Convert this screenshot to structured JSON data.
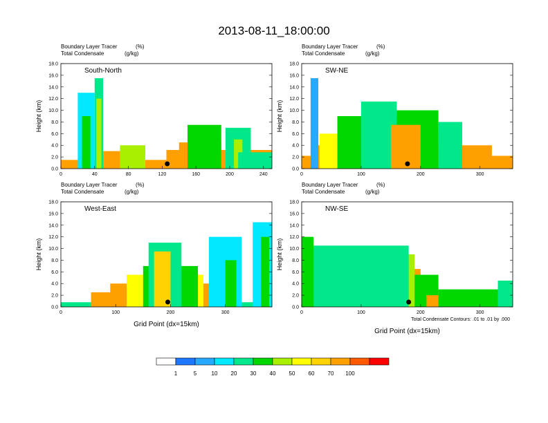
{
  "figure_title": "2013-08-11_18:00:00",
  "footnote": "Total Condensate Contours: .01 to .01 by .000",
  "colorbar": {
    "colors": [
      "#ffffff",
      "#1e78ff",
      "#28a8ff",
      "#00e8ff",
      "#00e88a",
      "#00d800",
      "#a8f000",
      "#ffff00",
      "#ffd200",
      "#ffa000",
      "#ff5a00",
      "#ff0000"
    ],
    "labels": [
      "1",
      "5",
      "10",
      "20",
      "30",
      "40",
      "50",
      "60",
      "70",
      "100"
    ]
  },
  "chart_data": [
    {
      "type": "heatmap",
      "panel": "South-North",
      "title_line1": "Boundary Layer Tracer",
      "title_unit1": "(%)",
      "title_line2": "Total Condensate",
      "title_unit2": "(g/kg)",
      "ylabel": "Height (km)",
      "xlabel": "",
      "xlim": [
        0,
        250
      ],
      "ylim": [
        0,
        18
      ],
      "xticks": [
        0,
        40,
        80,
        120,
        160,
        200,
        240
      ],
      "yticks": [
        "0.0",
        "2.0",
        "4.0",
        "6.0",
        "8.0",
        "10.0",
        "12.0",
        "14.0",
        "16.0",
        "18.0"
      ],
      "marker_x": 126,
      "plumes": [
        {
          "x0": 0,
          "x1": 250,
          "top": 1.5,
          "v": 90
        },
        {
          "x0": 125,
          "x1": 250,
          "top": 3.2,
          "v": 80
        },
        {
          "x0": 140,
          "x1": 190,
          "top": 4.5,
          "v": 70
        },
        {
          "x0": 150,
          "x1": 190,
          "top": 7.5,
          "v": 35
        },
        {
          "x0": 195,
          "x1": 225,
          "top": 7,
          "v": 25
        },
        {
          "x0": 205,
          "x1": 215,
          "top": 5,
          "v": 40
        },
        {
          "x0": 20,
          "x1": 40,
          "top": 13,
          "v": 15
        },
        {
          "x0": 25,
          "x1": 35,
          "top": 9,
          "v": 30
        },
        {
          "x0": 40,
          "x1": 50,
          "top": 15.5,
          "v": 20
        },
        {
          "x0": 42,
          "x1": 48,
          "top": 12,
          "v": 40
        },
        {
          "x0": 50,
          "x1": 100,
          "top": 3,
          "v": 70
        },
        {
          "x0": 70,
          "x1": 100,
          "top": 4,
          "v": 40
        },
        {
          "x0": 210,
          "x1": 250,
          "top": 2.8,
          "v": 20
        }
      ]
    },
    {
      "type": "heatmap",
      "panel": "SW-NE",
      "title_line1": "Boundary Layer Tracer",
      "title_unit1": "(%)",
      "title_line2": "Total Condensate",
      "title_unit2": "(g/kg)",
      "ylabel": "Height (km)",
      "xlabel": "",
      "xlim": [
        0,
        355
      ],
      "ylim": [
        0,
        18
      ],
      "xticks": [
        0,
        100,
        200,
        300
      ],
      "yticks": [
        "0.0",
        "2.0",
        "4.0",
        "6.0",
        "8.0",
        "10.0",
        "12.0",
        "14.0",
        "16.0",
        "18.0"
      ],
      "marker_x": 178,
      "plumes": [
        {
          "x0": 0,
          "x1": 355,
          "top": 2.2,
          "v": 90
        },
        {
          "x0": 20,
          "x1": 320,
          "top": 4,
          "v": 80
        },
        {
          "x0": 30,
          "x1": 230,
          "top": 6,
          "v": 50
        },
        {
          "x0": 60,
          "x1": 180,
          "top": 9,
          "v": 35
        },
        {
          "x0": 100,
          "x1": 160,
          "top": 11.5,
          "v": 20
        },
        {
          "x0": 160,
          "x1": 230,
          "top": 10,
          "v": 30
        },
        {
          "x0": 150,
          "x1": 200,
          "top": 7.5,
          "v": 70
        },
        {
          "x0": 230,
          "x1": 270,
          "top": 8,
          "v": 20
        },
        {
          "x0": 15,
          "x1": 28,
          "top": 15.5,
          "v": 5
        }
      ]
    },
    {
      "type": "heatmap",
      "panel": "West-East",
      "title_line1": "Boundary Layer Tracer",
      "title_unit1": "(%)",
      "title_line2": "Total Condensate",
      "title_unit2": "(g/kg)",
      "ylabel": "Height (km)",
      "xlabel": "Grid Point (dx=15km)",
      "xlim": [
        0,
        385
      ],
      "ylim": [
        0,
        18
      ],
      "xticks": [
        0,
        100,
        200,
        300
      ],
      "yticks": [
        "0.0",
        "2.0",
        "4.0",
        "6.0",
        "8.0",
        "10.0",
        "12.0",
        "14.0",
        "16.0",
        "18.0"
      ],
      "marker_x": 195,
      "plumes": [
        {
          "x0": 0,
          "x1": 385,
          "top": 0.8,
          "v": 25
        },
        {
          "x0": 55,
          "x1": 300,
          "top": 2.5,
          "v": 90
        },
        {
          "x0": 90,
          "x1": 280,
          "top": 4,
          "v": 80
        },
        {
          "x0": 120,
          "x1": 260,
          "top": 5.5,
          "v": 50
        },
        {
          "x0": 150,
          "x1": 250,
          "top": 7,
          "v": 35
        },
        {
          "x0": 160,
          "x1": 220,
          "top": 11,
          "v": 25
        },
        {
          "x0": 170,
          "x1": 200,
          "top": 9.5,
          "v": 65
        },
        {
          "x0": 270,
          "x1": 330,
          "top": 12,
          "v": 15
        },
        {
          "x0": 300,
          "x1": 320,
          "top": 8,
          "v": 30
        },
        {
          "x0": 350,
          "x1": 385,
          "top": 14.5,
          "v": 15
        },
        {
          "x0": 365,
          "x1": 380,
          "top": 12,
          "v": 30
        }
      ]
    },
    {
      "type": "heatmap",
      "panel": "NW-SE",
      "title_line1": "Boundary Layer Tracer",
      "title_unit1": "(%)",
      "title_line2": "Total Condensate",
      "title_unit2": "(g/kg)",
      "ylabel": "Height (km)",
      "xlabel": "Grid Point (dx=15km)",
      "xlim": [
        0,
        355
      ],
      "ylim": [
        0,
        18
      ],
      "xticks": [
        0,
        100,
        200,
        300
      ],
      "yticks": [
        "0.0",
        "2.0",
        "4.0",
        "6.0",
        "8.0",
        "10.0",
        "12.0",
        "14.0",
        "16.0",
        "18.0"
      ],
      "marker_x": 180,
      "plumes": [
        {
          "x0": 0,
          "x1": 210,
          "top": 4,
          "v": 90
        },
        {
          "x0": 0,
          "x1": 200,
          "top": 6.5,
          "v": 75
        },
        {
          "x0": 0,
          "x1": 190,
          "top": 9,
          "v": 45
        },
        {
          "x0": 0,
          "x1": 180,
          "top": 10.5,
          "v": 25
        },
        {
          "x0": 0,
          "x1": 20,
          "top": 12,
          "v": 30
        },
        {
          "x0": 190,
          "x1": 230,
          "top": 5.5,
          "v": 30
        },
        {
          "x0": 210,
          "x1": 355,
          "top": 2,
          "v": 70
        },
        {
          "x0": 230,
          "x1": 355,
          "top": 3,
          "v": 30
        },
        {
          "x0": 330,
          "x1": 355,
          "top": 4.5,
          "v": 20
        }
      ]
    }
  ]
}
